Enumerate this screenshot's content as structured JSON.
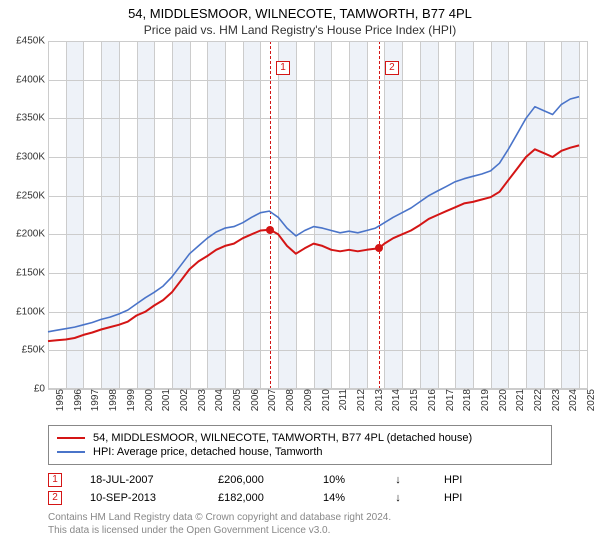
{
  "title": "54, MIDDLESMOOR, WILNECOTE, TAMWORTH, B77 4PL",
  "subtitle": "Price paid vs. HM Land Registry's House Price Index (HPI)",
  "chart": {
    "type": "line",
    "background_color": "#ffffff",
    "grid_color": "#cccccc",
    "alt_band_color": "#eef2f8",
    "x_range": [
      1995,
      2025.5
    ],
    "y_range": [
      0,
      450000
    ],
    "y_ticks": [
      0,
      50000,
      100000,
      150000,
      200000,
      250000,
      300000,
      350000,
      400000,
      450000
    ],
    "y_tick_labels": [
      "£0",
      "£50K",
      "£100K",
      "£150K",
      "£200K",
      "£250K",
      "£300K",
      "£350K",
      "£400K",
      "£450K"
    ],
    "x_ticks": [
      1995,
      1996,
      1997,
      1998,
      1999,
      2000,
      2001,
      2002,
      2003,
      2004,
      2005,
      2006,
      2007,
      2008,
      2009,
      2010,
      2011,
      2012,
      2013,
      2014,
      2015,
      2016,
      2017,
      2018,
      2019,
      2020,
      2021,
      2022,
      2023,
      2024,
      2025
    ],
    "series": [
      {
        "name": "price_paid",
        "label": "54, MIDDLESMOOR, WILNECOTE, TAMWORTH, B77 4PL (detached house)",
        "color": "#d41515",
        "line_width": 2,
        "data": [
          [
            1995,
            62000
          ],
          [
            1995.5,
            63000
          ],
          [
            1996,
            64000
          ],
          [
            1996.5,
            66000
          ],
          [
            1997,
            70000
          ],
          [
            1997.5,
            73000
          ],
          [
            1998,
            77000
          ],
          [
            1998.5,
            80000
          ],
          [
            1999,
            83000
          ],
          [
            1999.5,
            87000
          ],
          [
            2000,
            95000
          ],
          [
            2000.5,
            100000
          ],
          [
            2001,
            108000
          ],
          [
            2001.5,
            115000
          ],
          [
            2002,
            125000
          ],
          [
            2002.5,
            140000
          ],
          [
            2003,
            155000
          ],
          [
            2003.5,
            165000
          ],
          [
            2004,
            172000
          ],
          [
            2004.5,
            180000
          ],
          [
            2005,
            185000
          ],
          [
            2005.5,
            188000
          ],
          [
            2006,
            195000
          ],
          [
            2006.5,
            200000
          ],
          [
            2007,
            205000
          ],
          [
            2007.54,
            206000
          ],
          [
            2008,
            200000
          ],
          [
            2008.5,
            185000
          ],
          [
            2009,
            175000
          ],
          [
            2009.5,
            182000
          ],
          [
            2010,
            188000
          ],
          [
            2010.5,
            185000
          ],
          [
            2011,
            180000
          ],
          [
            2011.5,
            178000
          ],
          [
            2012,
            180000
          ],
          [
            2012.5,
            178000
          ],
          [
            2013,
            180000
          ],
          [
            2013.69,
            182000
          ],
          [
            2014,
            188000
          ],
          [
            2014.5,
            195000
          ],
          [
            2015,
            200000
          ],
          [
            2015.5,
            205000
          ],
          [
            2016,
            212000
          ],
          [
            2016.5,
            220000
          ],
          [
            2017,
            225000
          ],
          [
            2017.5,
            230000
          ],
          [
            2018,
            235000
          ],
          [
            2018.5,
            240000
          ],
          [
            2019,
            242000
          ],
          [
            2019.5,
            245000
          ],
          [
            2020,
            248000
          ],
          [
            2020.5,
            255000
          ],
          [
            2021,
            270000
          ],
          [
            2021.5,
            285000
          ],
          [
            2022,
            300000
          ],
          [
            2022.5,
            310000
          ],
          [
            2023,
            305000
          ],
          [
            2023.5,
            300000
          ],
          [
            2024,
            308000
          ],
          [
            2024.5,
            312000
          ],
          [
            2025,
            315000
          ]
        ]
      },
      {
        "name": "hpi",
        "label": "HPI: Average price, detached house, Tamworth",
        "color": "#4a74c9",
        "line_width": 1.6,
        "data": [
          [
            1995,
            74000
          ],
          [
            1995.5,
            76000
          ],
          [
            1996,
            78000
          ],
          [
            1996.5,
            80000
          ],
          [
            1997,
            83000
          ],
          [
            1997.5,
            86000
          ],
          [
            1998,
            90000
          ],
          [
            1998.5,
            93000
          ],
          [
            1999,
            97000
          ],
          [
            1999.5,
            102000
          ],
          [
            2000,
            110000
          ],
          [
            2000.5,
            118000
          ],
          [
            2001,
            125000
          ],
          [
            2001.5,
            133000
          ],
          [
            2002,
            145000
          ],
          [
            2002.5,
            160000
          ],
          [
            2003,
            175000
          ],
          [
            2003.5,
            185000
          ],
          [
            2004,
            195000
          ],
          [
            2004.5,
            203000
          ],
          [
            2005,
            208000
          ],
          [
            2005.5,
            210000
          ],
          [
            2006,
            215000
          ],
          [
            2006.5,
            222000
          ],
          [
            2007,
            228000
          ],
          [
            2007.5,
            230000
          ],
          [
            2008,
            222000
          ],
          [
            2008.5,
            208000
          ],
          [
            2009,
            198000
          ],
          [
            2009.5,
            205000
          ],
          [
            2010,
            210000
          ],
          [
            2010.5,
            208000
          ],
          [
            2011,
            205000
          ],
          [
            2011.5,
            202000
          ],
          [
            2012,
            204000
          ],
          [
            2012.5,
            202000
          ],
          [
            2013,
            205000
          ],
          [
            2013.5,
            208000
          ],
          [
            2014,
            215000
          ],
          [
            2014.5,
            222000
          ],
          [
            2015,
            228000
          ],
          [
            2015.5,
            234000
          ],
          [
            2016,
            242000
          ],
          [
            2016.5,
            250000
          ],
          [
            2017,
            256000
          ],
          [
            2017.5,
            262000
          ],
          [
            2018,
            268000
          ],
          [
            2018.5,
            272000
          ],
          [
            2019,
            275000
          ],
          [
            2019.5,
            278000
          ],
          [
            2020,
            282000
          ],
          [
            2020.5,
            292000
          ],
          [
            2021,
            310000
          ],
          [
            2021.5,
            330000
          ],
          [
            2022,
            350000
          ],
          [
            2022.5,
            365000
          ],
          [
            2023,
            360000
          ],
          [
            2023.5,
            355000
          ],
          [
            2024,
            368000
          ],
          [
            2024.5,
            375000
          ],
          [
            2025,
            378000
          ]
        ]
      }
    ],
    "markers": [
      {
        "num": "1",
        "x": 2007.54,
        "y": 206000,
        "line_color": "#d41515",
        "box_color": "#d41515",
        "dot_color": "#d41515"
      },
      {
        "num": "2",
        "x": 2013.69,
        "y": 182000,
        "line_color": "#d41515",
        "box_color": "#d41515",
        "dot_color": "#d41515"
      }
    ]
  },
  "legend": {
    "border_color": "#888888",
    "items": [
      {
        "color": "#d41515",
        "label": "54, MIDDLESMOOR, WILNECOTE, TAMWORTH, B77 4PL (detached house)"
      },
      {
        "color": "#4a74c9",
        "label": "HPI: Average price, detached house, Tamworth"
      }
    ]
  },
  "marker_table": {
    "rows": [
      {
        "num": "1",
        "num_color": "#d41515",
        "date": "18-JUL-2007",
        "price": "£206,000",
        "pct": "10%",
        "arrow": "↓",
        "ref": "HPI"
      },
      {
        "num": "2",
        "num_color": "#d41515",
        "date": "10-SEP-2013",
        "price": "£182,000",
        "pct": "14%",
        "arrow": "↓",
        "ref": "HPI"
      }
    ]
  },
  "attribution": {
    "line1": "Contains HM Land Registry data © Crown copyright and database right 2024.",
    "line2": "This data is licensed under the Open Government Licence v3.0."
  }
}
